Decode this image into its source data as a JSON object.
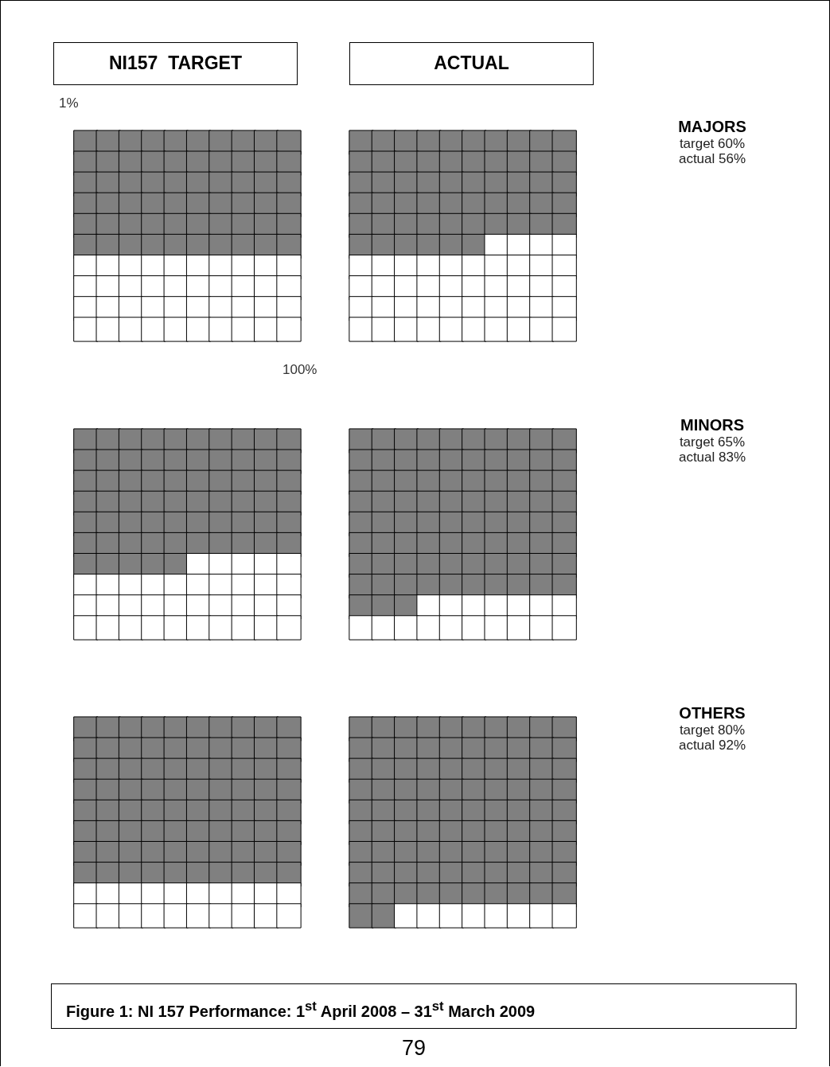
{
  "chart_data": [
    {
      "type": "other",
      "title": "MAJORS",
      "categories": [
        "target",
        "actual"
      ],
      "values": [
        60,
        56
      ],
      "value_labels": [
        "60%",
        "56%"
      ],
      "color": "#808080",
      "annotations": [
        "NI157  TARGET",
        "ACTUAL",
        "1%",
        "100%"
      ]
    },
    {
      "type": "other",
      "title": "MINORS",
      "categories": [
        "target",
        "actual"
      ],
      "values": [
        65,
        83
      ],
      "value_labels": [
        "65%",
        "83%"
      ],
      "color": "#808080"
    },
    {
      "type": "other",
      "title": "OTHERS",
      "categories": [
        "target",
        "actual"
      ],
      "values": [
        80,
        92
      ],
      "value_labels": [
        "80%",
        "92%"
      ],
      "color": "#808080",
      "annotations": [
        "Figure 1: NI 157 Performance: 1$^{st}$ April 2008 – 31$^{st}$ March 2009",
        "79"
      ]
    }
  ]
}
